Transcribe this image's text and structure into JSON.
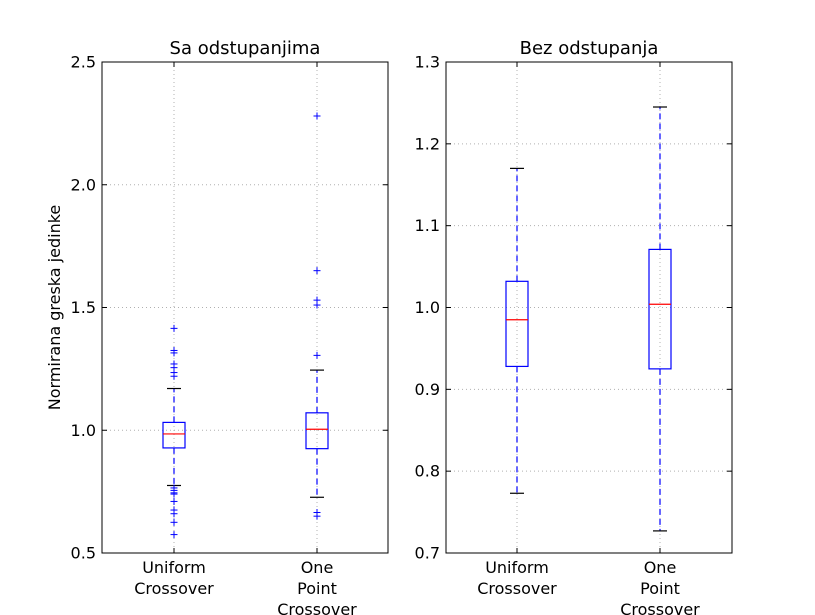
{
  "chart_data": [
    {
      "type": "boxplot",
      "title": "Sa odstupanjima",
      "ylabel": "Normirana greska jedinke",
      "xlabel": "",
      "ylim": [
        0.5,
        2.5
      ],
      "yticks": [
        0.5,
        1.0,
        1.5,
        2.0,
        2.5
      ],
      "ytick_labels": [
        "0.5",
        "1.0",
        "1.5",
        "2.0",
        "2.5"
      ],
      "grid": true,
      "categories": [
        [
          "Uniform",
          "Crossover"
        ],
        [
          "One",
          "Point",
          "Crossover"
        ]
      ],
      "boxes": [
        {
          "whisker_low": 0.775,
          "q1": 0.928,
          "median": 0.985,
          "q3": 1.032,
          "whisker_high": 1.17,
          "outliers": [
            1.415,
            1.325,
            1.315,
            1.27,
            1.255,
            1.235,
            1.22,
            0.765,
            0.755,
            0.745,
            0.74,
            0.71,
            0.675,
            0.66,
            0.625,
            0.575
          ]
        },
        {
          "whisker_low": 0.727,
          "q1": 0.925,
          "median": 1.004,
          "q3": 1.071,
          "whisker_high": 1.245,
          "outliers": [
            2.28,
            1.65,
            1.53,
            1.51,
            1.305,
            0.665,
            0.65
          ]
        }
      ],
      "colors": {
        "box": "#0000ff",
        "median": "#ff0000",
        "whisker_cap": "#000000",
        "grid": "#b0b0b0"
      }
    },
    {
      "type": "boxplot",
      "title": "Bez odstupanja",
      "ylabel": "",
      "xlabel": "",
      "ylim": [
        0.7,
        1.3
      ],
      "yticks": [
        0.7,
        0.8,
        0.9,
        1.0,
        1.1,
        1.2,
        1.3
      ],
      "ytick_labels": [
        "0.7",
        "0.8",
        "0.9",
        "1.0",
        "1.1",
        "1.2",
        "1.3"
      ],
      "grid": true,
      "categories": [
        [
          "Uniform",
          "Crossover"
        ],
        [
          "One",
          "Point",
          "Crossover"
        ]
      ],
      "boxes": [
        {
          "whisker_low": 0.773,
          "q1": 0.928,
          "median": 0.985,
          "q3": 1.032,
          "whisker_high": 1.17,
          "outliers": []
        },
        {
          "whisker_low": 0.727,
          "q1": 0.925,
          "median": 1.004,
          "q3": 1.071,
          "whisker_high": 1.245,
          "outliers": []
        }
      ],
      "colors": {
        "box": "#0000ff",
        "median": "#ff0000",
        "whisker_cap": "#000000",
        "grid": "#b0b0b0"
      }
    }
  ]
}
